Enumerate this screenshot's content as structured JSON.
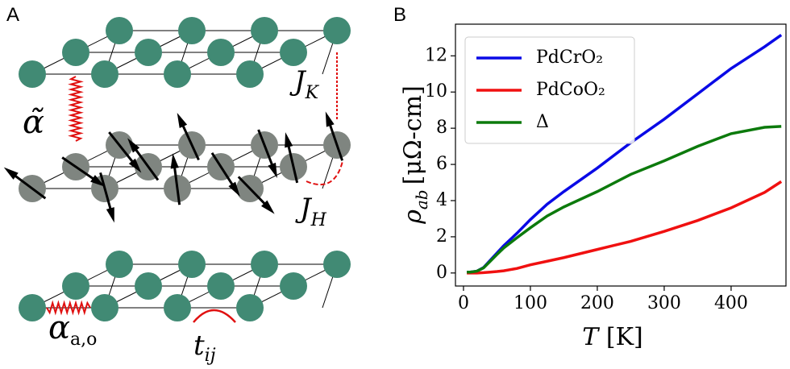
{
  "panels": {
    "a": "A",
    "b": "B"
  },
  "diagram": {
    "interlayer_coupling": {
      "base": "α̃"
    },
    "kondo_coupling": {
      "base": "J",
      "sub": "K"
    },
    "hund_coupling": {
      "base": "J",
      "sub": "H"
    },
    "intralayer_coupling": {
      "base": "α",
      "sub": "a,o"
    },
    "hopping": {
      "base": "t",
      "sub": "ij"
    }
  },
  "chart_data": {
    "type": "line",
    "xlabel": {
      "symbol": "T",
      "unit": "[K]"
    },
    "ylabel": {
      "symbol": "ρ",
      "sub": "ab",
      "unit": "[μΩ-cm]"
    },
    "x": [
      5,
      10,
      20,
      30,
      40,
      50,
      60,
      80,
      100,
      125,
      150,
      200,
      250,
      300,
      350,
      400,
      450,
      475
    ],
    "series": [
      {
        "name": "PdCrO₂",
        "color": "#0a0ae6",
        "values": [
          0.05,
          0.05,
          0.1,
          0.3,
          0.7,
          1.1,
          1.5,
          2.2,
          2.95,
          3.8,
          4.5,
          5.8,
          7.2,
          8.5,
          9.9,
          11.3,
          12.5,
          13.15
        ]
      },
      {
        "name": "PdCoO₂",
        "color": "#f01010",
        "values": [
          0,
          0,
          0,
          0.02,
          0.05,
          0.08,
          0.12,
          0.25,
          0.45,
          0.65,
          0.85,
          1.3,
          1.75,
          2.3,
          2.9,
          3.6,
          4.45,
          5.05
        ]
      },
      {
        "name": "Δ",
        "color": "#0c7a0c",
        "values": [
          0.05,
          0.05,
          0.1,
          0.28,
          0.65,
          1.02,
          1.38,
          1.95,
          2.5,
          3.15,
          3.65,
          4.5,
          5.45,
          6.2,
          7.0,
          7.7,
          8.05,
          8.1
        ]
      }
    ],
    "xlim": [
      -12,
      482
    ],
    "xticks": [
      0,
      100,
      200,
      300,
      400
    ],
    "ylim": [
      -0.72,
      13.75
    ],
    "yticks": [
      0,
      2,
      4,
      6,
      8,
      10,
      12
    ],
    "legend": "upper left",
    "grid": false
  }
}
